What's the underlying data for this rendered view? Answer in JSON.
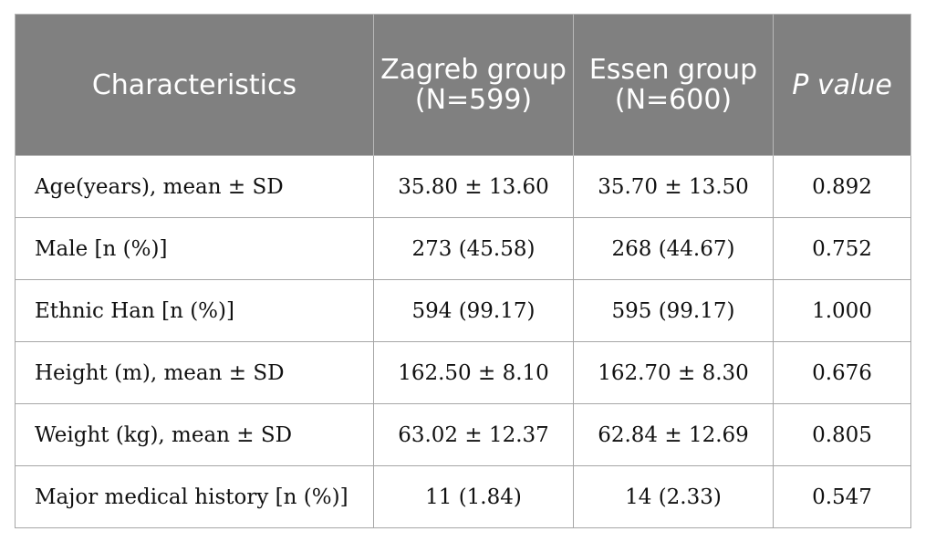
{
  "table": {
    "headers": [
      {
        "label": "Characteristics",
        "italic": false
      },
      {
        "label": "Zagreb group (N=599)",
        "italic": false
      },
      {
        "label": "Essen group (N=600)",
        "italic": false
      },
      {
        "label": "P value",
        "italic": true
      }
    ],
    "rows": [
      {
        "characteristic": "Age(years), mean ± SD",
        "zagreb": "35.80 ± 13.60",
        "essen": "35.70 ± 13.50",
        "p_value": "0.892"
      },
      {
        "characteristic": "Male [n (%)]",
        "zagreb": "273 (45.58)",
        "essen": "268 (44.67)",
        "p_value": "0.752"
      },
      {
        "characteristic": "Ethnic Han [n (%)]",
        "zagreb": "594 (99.17)",
        "essen": "595 (99.17)",
        "p_value": "1.000"
      },
      {
        "characteristic": "Height (m), mean ± SD",
        "zagreb": "162.50 ± 8.10",
        "essen": "162.70 ± 8.30",
        "p_value": "0.676"
      },
      {
        "characteristic": "Weight (kg), mean ± SD",
        "zagreb": "63.02 ± 12.37",
        "essen": "62.84 ± 12.69",
        "p_value": "0.805"
      },
      {
        "characteristic": "Major medical history [n (%)]",
        "zagreb": "11 (1.84)",
        "essen": "14 (2.33)",
        "p_value": "0.547"
      }
    ]
  }
}
